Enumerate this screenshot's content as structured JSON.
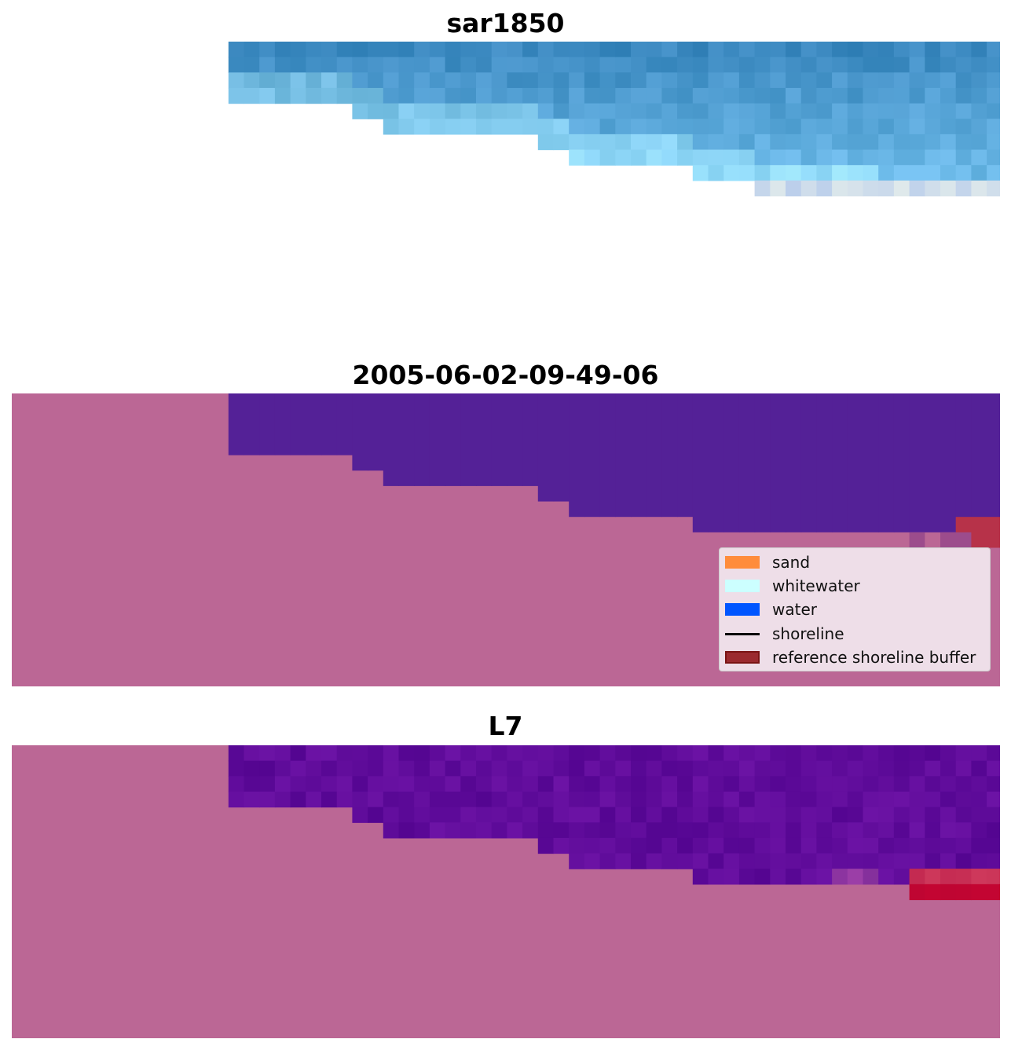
{
  "figure": {
    "panels": [
      {
        "title": "sar1850"
      },
      {
        "title": "2005-06-02-09-49-06"
      },
      {
        "title": "L7"
      }
    ]
  },
  "legend": {
    "items": [
      {
        "label": "sand",
        "kind": "patch",
        "color": "#ff8c3c"
      },
      {
        "label": "whitewater",
        "kind": "patch",
        "color": "#ccffff"
      },
      {
        "label": "water",
        "kind": "patch",
        "color": "#0055ff"
      },
      {
        "label": "shoreline",
        "kind": "line",
        "color": "#000000"
      },
      {
        "label": "reference shoreline buffer",
        "kind": "patch",
        "color": "#9b2a2f",
        "edge": "#7a1414"
      }
    ]
  },
  "chart_data": [
    {
      "type": "heatmap",
      "title": "sar1850",
      "grid": false,
      "axes": "off",
      "colors": {
        "background": "#ffffff",
        "primary": "#3a88c2"
      }
    },
    {
      "type": "heatmap",
      "title": "2005-06-02-09-49-06",
      "grid": false,
      "axes": "off",
      "legend_placement": "lower-right",
      "colors": {
        "land": "#bb6795",
        "water": "#542197",
        "buffer": "#b73249"
      }
    },
    {
      "type": "heatmap",
      "title": "L7",
      "grid": false,
      "axes": "off",
      "colors": {
        "land": "#bb6795",
        "water": "#5c0c99",
        "buffer": "#c2073d"
      }
    }
  ]
}
